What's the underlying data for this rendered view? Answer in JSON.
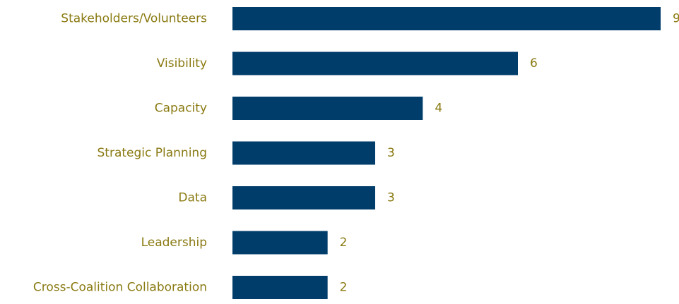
{
  "chart_data": {
    "type": "bar",
    "orientation": "horizontal",
    "categories": [
      "Stakeholders/Volunteers",
      "Visibility",
      "Capacity",
      "Strategic Planning",
      "Data",
      "Leadership",
      "Cross-Coalition Collaboration"
    ],
    "values": [
      9,
      6,
      4,
      3,
      3,
      2,
      2
    ],
    "xlim": [
      0,
      9
    ],
    "grid": false,
    "legend": "none",
    "colors": {
      "bar": "#003d6b",
      "label": "#8a7a12"
    }
  }
}
